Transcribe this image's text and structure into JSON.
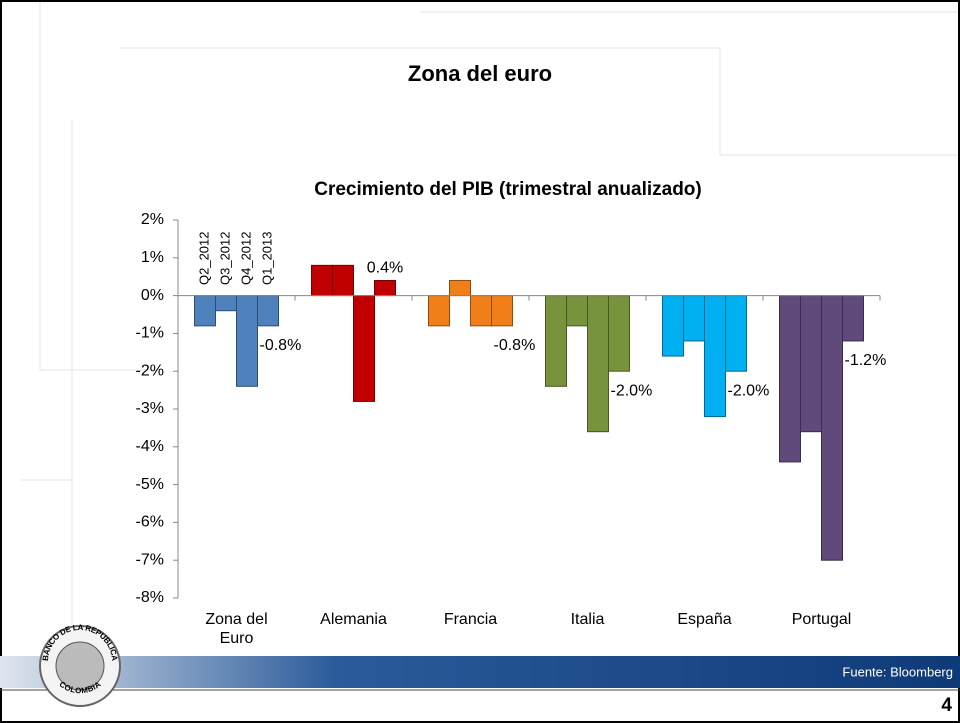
{
  "slide": {
    "title": "Zona del euro",
    "source": "Fuente: Bloomberg",
    "page_number": "4",
    "logo_text": [
      "BANCO DE LA REPUBLICA",
      "COLOMBIA"
    ]
  },
  "chart_data": {
    "type": "bar",
    "title": "Crecimiento del PIB (trimestral anualizado)",
    "categories": [
      "Zona del Euro",
      "Alemania",
      "Francia",
      "Italia",
      "España",
      "Portugal"
    ],
    "colors": [
      "#4f81bd",
      "#c00000",
      "#f07f1a",
      "#77933c",
      "#00b0f0",
      "#604a7b"
    ],
    "series": [
      {
        "name": "Q2_2012",
        "values": [
          -0.8,
          0.8,
          -0.8,
          -2.4,
          -1.6,
          -4.4
        ]
      },
      {
        "name": "Q3_2012",
        "values": [
          -0.4,
          0.8,
          0.4,
          -0.8,
          -1.2,
          -3.6
        ]
      },
      {
        "name": "Q4_2012",
        "values": [
          -2.4,
          -2.8,
          -0.8,
          -3.6,
          -3.2,
          -7.0
        ]
      },
      {
        "name": "Q1_2013",
        "values": [
          -0.8,
          0.4,
          -0.8,
          -2.0,
          -2.0,
          -1.2
        ],
        "value_labels": [
          "-0.8%",
          "0.4%",
          "-0.8%",
          "-2.0%",
          "-2.0%",
          "-1.2%"
        ]
      }
    ],
    "ylim": [
      -8,
      2
    ],
    "yticks": [
      {
        "value": -8,
        "label": "-8%"
      },
      {
        "value": -7,
        "label": "-7%"
      },
      {
        "value": -6,
        "label": "-6%"
      },
      {
        "value": -5,
        "label": "-5%"
      },
      {
        "value": -4,
        "label": "-4%"
      },
      {
        "value": -3,
        "label": "-3%"
      },
      {
        "value": -2,
        "label": "-2%"
      },
      {
        "value": -1,
        "label": "-1%"
      },
      {
        "value": 0,
        "label": "0%"
      },
      {
        "value": 1,
        "label": "1%"
      },
      {
        "value": 2,
        "label": "2%"
      }
    ],
    "grid": false
  }
}
